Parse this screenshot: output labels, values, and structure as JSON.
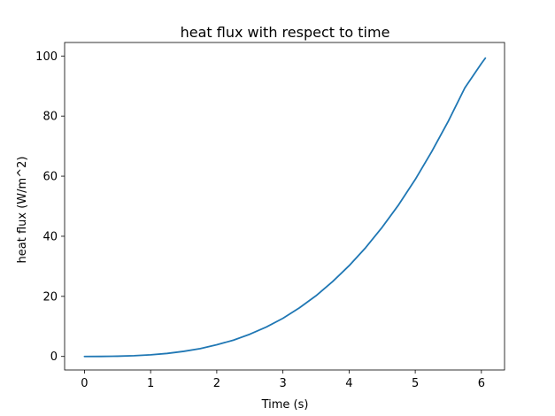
{
  "chart_data": {
    "type": "line",
    "title": "heat flux with respect to time",
    "xlabel": "Time (s)",
    "ylabel": "heat flux (W/m^2)",
    "xlim": [
      -0.3,
      6.35
    ],
    "ylim": [
      -4.5,
      104.5
    ],
    "xticks": [
      0,
      1,
      2,
      3,
      4,
      5,
      6
    ],
    "yticks": [
      0,
      20,
      40,
      60,
      80,
      100
    ],
    "grid": false,
    "legend": "none",
    "series": [
      {
        "color": "#1f77b4",
        "x": [
          0,
          0.25,
          0.5,
          0.75,
          1.0,
          1.25,
          1.5,
          1.75,
          2.0,
          2.25,
          2.5,
          2.75,
          3.0,
          3.25,
          3.5,
          3.75,
          4.0,
          4.25,
          4.5,
          4.75,
          5.0,
          5.25,
          5.5,
          5.75,
          6.0,
          6.06
        ],
        "y": [
          0,
          0.01,
          0.09,
          0.25,
          0.55,
          1.0,
          1.7,
          2.6,
          3.9,
          5.4,
          7.4,
          9.8,
          12.7,
          16.2,
          20.2,
          24.9,
          30.2,
          36.2,
          43.0,
          50.5,
          58.9,
          68.2,
          78.3,
          89.4,
          97.5,
          99.3
        ]
      }
    ]
  }
}
